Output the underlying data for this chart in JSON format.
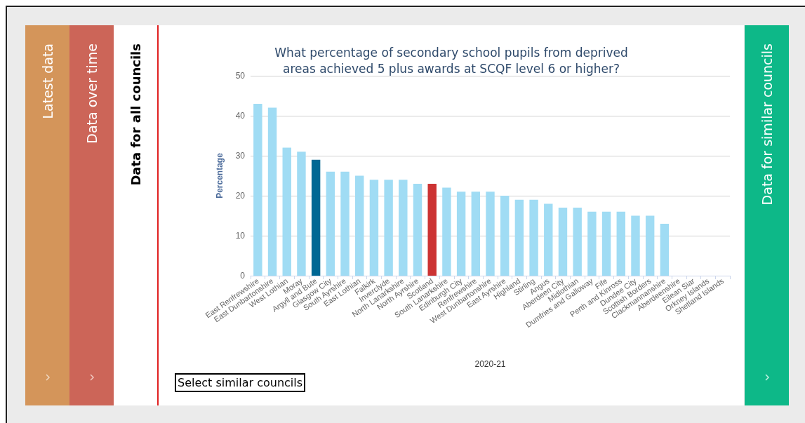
{
  "chart_data": {
    "type": "bar",
    "title": "What percentage of secondary school pupils from deprived\nareas achieved 5 plus awards at SCQF level 6 or higher?",
    "xlabel": "2020-21",
    "ylabel": "Percentage",
    "categories": [
      "East Renfrewshire",
      "East Dunbartonshire",
      "West Lothian",
      "Moray",
      "Argyll and Bute",
      "Glasgow City",
      "South Ayrshire",
      "East Lothian",
      "Falkirk",
      "Inverclyde",
      "North Lanarkshire",
      "North Ayrshire",
      "Scotland",
      "South Lanarkshire",
      "Edinburgh City",
      "Renfrewshire",
      "West Dunbartonshire",
      "East Ayrshire",
      "Highland",
      "Stirling",
      "Angus",
      "Aberdeen City",
      "Midlothian",
      "Dumfries and Galloway",
      "Fife",
      "Perth and Kinross",
      "Dundee City",
      "Scottish Borders",
      "Clackmannanshire",
      "Aberdeenshire",
      "Eilean Siar",
      "Orkney Islands",
      "Shetland Islands"
    ],
    "values": [
      43,
      42,
      32,
      31,
      29,
      26,
      26,
      25,
      24,
      24,
      24,
      23,
      23,
      22,
      21,
      21,
      21,
      20,
      19,
      19,
      18,
      17,
      17,
      16,
      16,
      16,
      15,
      15,
      13,
      null,
      null,
      null,
      null
    ],
    "colors": [
      "#a0dcf4",
      "#a0dcf4",
      "#a0dcf4",
      "#a0dcf4",
      "#006894",
      "#a0dcf4",
      "#a0dcf4",
      "#a0dcf4",
      "#a0dcf4",
      "#a0dcf4",
      "#a0dcf4",
      "#a0dcf4",
      "#cc3333",
      "#a0dcf4",
      "#a0dcf4",
      "#a0dcf4",
      "#a0dcf4",
      "#a0dcf4",
      "#a0dcf4",
      "#a0dcf4",
      "#a0dcf4",
      "#a0dcf4",
      "#a0dcf4",
      "#a0dcf4",
      "#a0dcf4",
      "#a0dcf4",
      "#a0dcf4",
      "#a0dcf4",
      "#a0dcf4",
      "#a0dcf4",
      "#a0dcf4",
      "#a0dcf4",
      "#a0dcf4"
    ],
    "ylim": [
      0,
      50
    ],
    "yticks": [
      0,
      10,
      20,
      30,
      40,
      50
    ],
    "grid": "y",
    "annotations": [
      "Latest data",
      "Data over time",
      "Data for all councils",
      "Select similar councils",
      "Data for similar councils"
    ]
  }
}
